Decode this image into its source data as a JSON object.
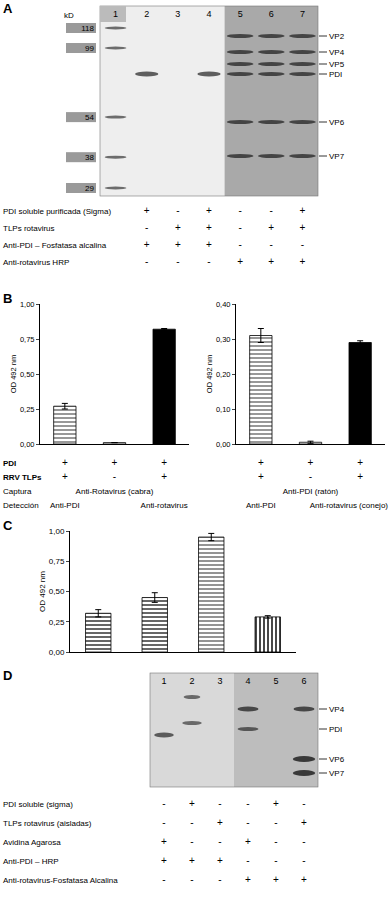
{
  "panel_labels": [
    "A",
    "B",
    "C",
    "D"
  ],
  "blot_A": {
    "lanes": [
      "1",
      "2",
      "3",
      "4",
      "5",
      "6",
      "7"
    ],
    "kd_label": "kD",
    "kd_markers": [
      118,
      99,
      54,
      38,
      29
    ],
    "bands": [
      "VP2",
      "VP4",
      "VP5",
      "PDI",
      "VP6",
      "VP7"
    ],
    "conditions": [
      {
        "label": "PDI soluble purificada (Sigma)",
        "lanes": [
          null,
          "+",
          "-",
          "+",
          "-",
          "-",
          "+"
        ]
      },
      {
        "label": "TLPs rotavirus",
        "lanes": [
          null,
          "-",
          "+",
          "+",
          "-",
          "+",
          "+"
        ]
      },
      {
        "label": "Anti-PDI – Fosfatasa alcalina",
        "lanes": [
          null,
          "+",
          "+",
          "+",
          "-",
          "-",
          "-"
        ]
      },
      {
        "label": "Anti-rotavirus HRP",
        "lanes": [
          null,
          "-",
          "-",
          "-",
          "+",
          "+",
          "+"
        ]
      }
    ]
  },
  "chart_data": [
    {
      "type": "bar",
      "panel": "B",
      "categories": [
        null,
        null,
        null
      ],
      "values": [
        0.27,
        0.01,
        0.82
      ],
      "errors": [
        0.02,
        0,
        0.005
      ],
      "colors": [
        "#8c8c8c",
        "#ffffff",
        "#000000"
      ],
      "y_label": "OD 492 nm",
      "ylim": [
        0,
        1.0
      ],
      "yticks": [
        {
          "value": 0,
          "label": "0,00"
        },
        {
          "value": 0.25,
          "label": "0,25"
        },
        {
          "value": 0.5,
          "label": "0,50"
        },
        {
          "value": 0.75,
          "label": "0,75"
        },
        {
          "value": 1.0,
          "label": "1,00"
        }
      ],
      "grid": false,
      "tick_labels": "y"
    },
    {
      "type": "bar",
      "panel": "B",
      "categories": [
        null,
        null,
        null
      ],
      "values": [
        0.31,
        0.005,
        0.29
      ],
      "errors": [
        0.02,
        0.003,
        0.005
      ],
      "colors": [
        "#8c8c8c",
        "#ffffff",
        "#000000"
      ],
      "y_label": "OD 492 nm",
      "ylim": [
        0,
        0.4
      ],
      "yticks": [
        {
          "value": 0,
          "label": "0,00"
        },
        {
          "value": 0.1,
          "label": "0,10"
        },
        {
          "value": 0.2,
          "label": "0,20"
        },
        {
          "value": 0.3,
          "label": "0,30"
        },
        {
          "value": 0.4,
          "label": "0,40"
        }
      ],
      "grid": false,
      "tick_labels": "y"
    },
    {
      "type": "bar",
      "panel": "C",
      "categories": [
        null,
        null,
        null,
        null
      ],
      "values": [
        0.32,
        0.45,
        0.95,
        0.29
      ],
      "errors": [
        0.03,
        0.04,
        0.03,
        0.01
      ],
      "colors": [
        "#555555",
        "#555555",
        "#888888",
        "#333333"
      ],
      "y_label": "OD 492 nm",
      "ylim": [
        0,
        1.0
      ],
      "yticks": [
        {
          "value": 0,
          "label": "0,00"
        },
        {
          "value": 0.25,
          "label": "0,25"
        },
        {
          "value": 0.5,
          "label": "0,50"
        },
        {
          "value": 0.75,
          "label": "0,75"
        },
        {
          "value": 1.0,
          "label": "1,00"
        }
      ],
      "grid": false,
      "tick_labels": "y"
    }
  ],
  "tables_B": [
    {
      "rows": [
        {
          "label": "PDI",
          "cells": [
            "+",
            "+",
            "+"
          ]
        },
        {
          "label": "RRV TLPs",
          "cells": [
            "+",
            "-",
            "+"
          ]
        },
        {
          "label": "Captura",
          "text": "Anti-Rotavirus (cabra)"
        },
        {
          "label": "Detección",
          "cells": [
            "Anti-PDI",
            null,
            "Anti-rotavirus"
          ]
        }
      ]
    },
    {
      "rows": [
        {
          "label": null,
          "cells": [
            "+",
            "+",
            "+"
          ]
        },
        {
          "label": null,
          "cells": [
            "+",
            "-",
            "+"
          ]
        },
        {
          "label": null,
          "text": "Anti-PDI (ratón)"
        },
        {
          "label": null,
          "cells": [
            "Anti-PDI",
            null,
            "Anti-rotavirus (conejo)"
          ]
        }
      ]
    }
  ],
  "blot_D": {
    "lanes": [
      "1",
      "2",
      "3",
      "4",
      "5",
      "6"
    ],
    "bands": [
      "VP4",
      "PDI",
      "VP6",
      "VP7"
    ],
    "conditions": [
      {
        "label": "PDI soluble (sigma)",
        "lanes": [
          "-",
          "+",
          "-",
          "-",
          "+",
          "-"
        ]
      },
      {
        "label": "TLPs rotavirus (aisladas)",
        "lanes": [
          "-",
          "-",
          "+",
          "-",
          "-",
          "+"
        ]
      },
      {
        "label": "Avidina Agarosa",
        "lanes": [
          "+",
          "-",
          "-",
          "+",
          "-",
          "-"
        ]
      },
      {
        "label": "Anti-PDI – HRP",
        "lanes": [
          "+",
          "+",
          "+",
          "-",
          "-",
          "-"
        ]
      },
      {
        "label": "Anti-rotavirus-Fosfatasa Alcalina",
        "lanes": [
          "-",
          "-",
          "-",
          "+",
          "+",
          "+"
        ]
      }
    ]
  }
}
